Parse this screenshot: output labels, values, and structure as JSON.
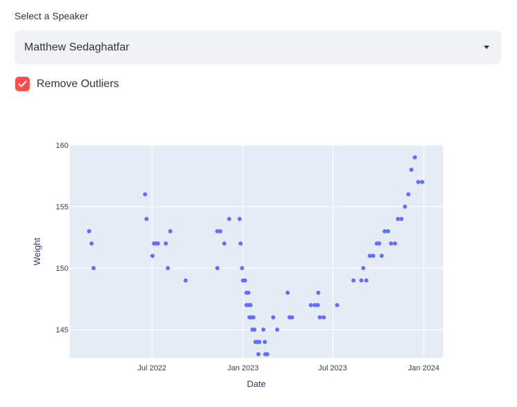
{
  "select": {
    "label": "Select a Speaker",
    "value": "Matthew Sedaghatfar"
  },
  "checkbox": {
    "label": "Remove Outliers",
    "checked": true
  },
  "colors": {
    "accent": "#ff4b4b",
    "marker": "#636efa",
    "plot_bg": "#e5ecf6"
  },
  "chart_data": {
    "type": "scatter",
    "xlabel": "Date",
    "ylabel": "Weight",
    "xlim": [
      "2022-01-16",
      "2024-02-09"
    ],
    "ylim": [
      142.7,
      160
    ],
    "yticks": [
      145,
      150,
      155,
      160
    ],
    "xticks": [
      {
        "date": "2022-07-01",
        "label": "Jul 2022"
      },
      {
        "date": "2023-01-01",
        "label": "Jan 2023"
      },
      {
        "date": "2023-07-01",
        "label": "Jul 2023"
      },
      {
        "date": "2024-01-01",
        "label": "Jan 2024"
      }
    ],
    "grid": true,
    "points": [
      {
        "x": "2022-02-24",
        "y": 153
      },
      {
        "x": "2022-03-01",
        "y": 152
      },
      {
        "x": "2022-03-05",
        "y": 150
      },
      {
        "x": "2022-06-17",
        "y": 156
      },
      {
        "x": "2022-06-20",
        "y": 154
      },
      {
        "x": "2022-07-02",
        "y": 151
      },
      {
        "x": "2022-07-05",
        "y": 152
      },
      {
        "x": "2022-07-09",
        "y": 152
      },
      {
        "x": "2022-07-13",
        "y": 152
      },
      {
        "x": "2022-07-29",
        "y": 152
      },
      {
        "x": "2022-08-02",
        "y": 150
      },
      {
        "x": "2022-08-07",
        "y": 153
      },
      {
        "x": "2022-09-07",
        "y": 149
      },
      {
        "x": "2022-11-10",
        "y": 153
      },
      {
        "x": "2022-11-10",
        "y": 150
      },
      {
        "x": "2022-11-16",
        "y": 153
      },
      {
        "x": "2022-11-24",
        "y": 152
      },
      {
        "x": "2022-12-04",
        "y": 154
      },
      {
        "x": "2022-12-25",
        "y": 154
      },
      {
        "x": "2022-12-27",
        "y": 152
      },
      {
        "x": "2022-12-30",
        "y": 150
      },
      {
        "x": "2023-01-01",
        "y": 149
      },
      {
        "x": "2023-01-05",
        "y": 149
      },
      {
        "x": "2023-01-08",
        "y": 148
      },
      {
        "x": "2023-01-12",
        "y": 148
      },
      {
        "x": "2023-01-08",
        "y": 147
      },
      {
        "x": "2023-01-12",
        "y": 147
      },
      {
        "x": "2023-01-16",
        "y": 147
      },
      {
        "x": "2023-01-14",
        "y": 146
      },
      {
        "x": "2023-01-18",
        "y": 146
      },
      {
        "x": "2023-01-22",
        "y": 146
      },
      {
        "x": "2023-01-20",
        "y": 145
      },
      {
        "x": "2023-01-24",
        "y": 145
      },
      {
        "x": "2023-01-26",
        "y": 144
      },
      {
        "x": "2023-01-30",
        "y": 144
      },
      {
        "x": "2023-02-03",
        "y": 144
      },
      {
        "x": "2023-02-01",
        "y": 143
      },
      {
        "x": "2023-02-11",
        "y": 145
      },
      {
        "x": "2023-02-14",
        "y": 144
      },
      {
        "x": "2023-02-15",
        "y": 143
      },
      {
        "x": "2023-02-19",
        "y": 143
      },
      {
        "x": "2023-03-03",
        "y": 146
      },
      {
        "x": "2023-03-11",
        "y": 145
      },
      {
        "x": "2023-04-01",
        "y": 148
      },
      {
        "x": "2023-04-05",
        "y": 146
      },
      {
        "x": "2023-04-10",
        "y": 146
      },
      {
        "x": "2023-05-18",
        "y": 147
      },
      {
        "x": "2023-05-26",
        "y": 147
      },
      {
        "x": "2023-06-02",
        "y": 148
      },
      {
        "x": "2023-06-01",
        "y": 147
      },
      {
        "x": "2023-06-05",
        "y": 146
      },
      {
        "x": "2023-06-13",
        "y": 146
      },
      {
        "x": "2023-07-10",
        "y": 147
      },
      {
        "x": "2023-08-12",
        "y": 149
      },
      {
        "x": "2023-08-28",
        "y": 149
      },
      {
        "x": "2023-09-01",
        "y": 150
      },
      {
        "x": "2023-09-07",
        "y": 149
      },
      {
        "x": "2023-09-14",
        "y": 151
      },
      {
        "x": "2023-09-21",
        "y": 151
      },
      {
        "x": "2023-09-28",
        "y": 152
      },
      {
        "x": "2023-10-03",
        "y": 152
      },
      {
        "x": "2023-10-08",
        "y": 151
      },
      {
        "x": "2023-10-14",
        "y": 153
      },
      {
        "x": "2023-10-21",
        "y": 153
      },
      {
        "x": "2023-10-27",
        "y": 152
      },
      {
        "x": "2023-11-04",
        "y": 152
      },
      {
        "x": "2023-11-10",
        "y": 154
      },
      {
        "x": "2023-11-17",
        "y": 154
      },
      {
        "x": "2023-11-24",
        "y": 155
      },
      {
        "x": "2023-12-01",
        "y": 156
      },
      {
        "x": "2023-12-07",
        "y": 158
      },
      {
        "x": "2023-12-14",
        "y": 159
      },
      {
        "x": "2023-12-21",
        "y": 157
      },
      {
        "x": "2023-12-29",
        "y": 157
      }
    ]
  }
}
